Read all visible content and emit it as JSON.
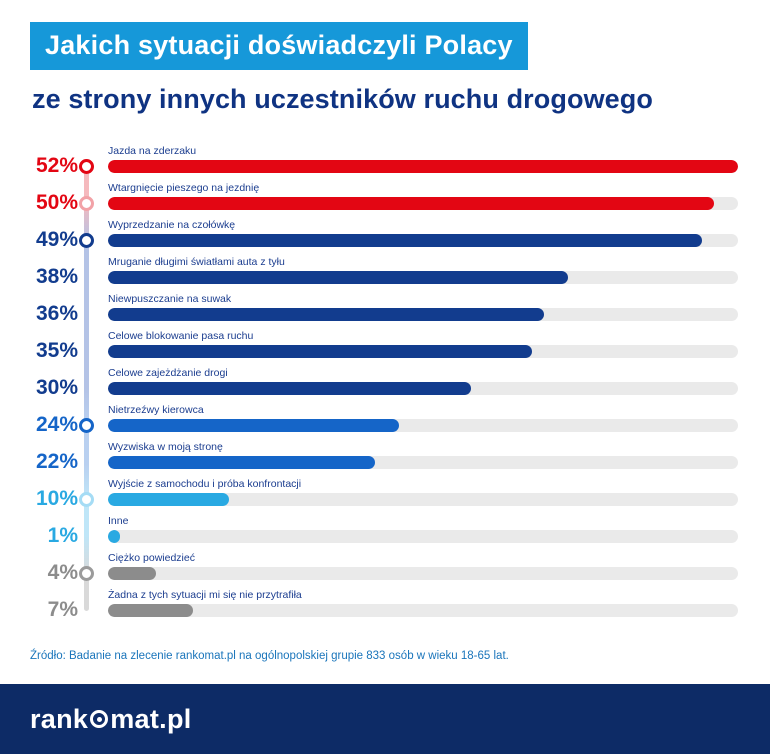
{
  "header": {
    "title_line1": "Jakich sytuacji doświadczyli Polacy",
    "title_line2": "ze strony innych uczestników ruchu drogowego"
  },
  "chart_data": {
    "type": "bar",
    "orientation": "horizontal",
    "title": "Jakich sytuacji doświadczyli Polacy ze strony innych uczestników ruchu drogowego",
    "unit": "%",
    "value_axis_max": 52,
    "track_color": "#eaeaea",
    "grid": false,
    "legend": false,
    "rows": [
      {
        "label": "Jazda na zderzaku",
        "value": 52,
        "percent_label": "52%",
        "color": "#e30613",
        "marker": true,
        "marker_color": "#e30613"
      },
      {
        "label": "Wtargnięcie pieszego na jezdnię",
        "value": 50,
        "percent_label": "50%",
        "color": "#e30613",
        "marker": true,
        "marker_color": "#f2a2a7"
      },
      {
        "label": "Wyprzedzanie na czołówkę",
        "value": 49,
        "percent_label": "49%",
        "color": "#123c8e",
        "marker": true,
        "marker_color": "#123c8e"
      },
      {
        "label": "Mruganie długimi światłami auta z tyłu",
        "value": 38,
        "percent_label": "38%",
        "color": "#123c8e",
        "marker": false,
        "marker_color": ""
      },
      {
        "label": "Niewpuszczanie na suwak",
        "value": 36,
        "percent_label": "36%",
        "color": "#123c8e",
        "marker": false,
        "marker_color": ""
      },
      {
        "label": "Celowe blokowanie pasa ruchu",
        "value": 35,
        "percent_label": "35%",
        "color": "#123c8e",
        "marker": false,
        "marker_color": ""
      },
      {
        "label": "Celowe zajeżdżanie drogi",
        "value": 30,
        "percent_label": "30%",
        "color": "#123c8e",
        "marker": false,
        "marker_color": ""
      },
      {
        "label": "Nietrzeźwy kierowca",
        "value": 24,
        "percent_label": "24%",
        "color": "#1565c8",
        "marker": true,
        "marker_color": "#1565c8"
      },
      {
        "label": "Wyzwiska w moją stronę",
        "value": 22,
        "percent_label": "22%",
        "color": "#1565c8",
        "marker": false,
        "marker_color": ""
      },
      {
        "label": "Wyjście z samochodu i próba konfrontacji",
        "value": 10,
        "percent_label": "10%",
        "color": "#29a9e2",
        "marker": true,
        "marker_color": "#a5dcf5"
      },
      {
        "label": "Inne",
        "value": 1,
        "percent_label": "1%",
        "color": "#29a9e2",
        "marker": false,
        "marker_color": ""
      },
      {
        "label": "Ciężko powiedzieć",
        "value": 4,
        "percent_label": "4%",
        "color": "#8c8c8c",
        "marker": true,
        "marker_color": "#9b9b9b"
      },
      {
        "label": "Żadna z tych sytuacji mi się nie przytrafiła",
        "value": 7,
        "percent_label": "7%",
        "color": "#8c8c8c",
        "marker": false,
        "marker_color": ""
      }
    ]
  },
  "source": "Źródło: Badanie na zlecenie rankomat.pl na ogólnopolskiej grupie 833 osób w wieku 18-65 lat.",
  "footer": {
    "logo_text_before": "rank",
    "logo_text_after": "mat.pl",
    "logo_icon": "circle-icon"
  },
  "colors": {
    "header_band": "#1698d9",
    "title_navy": "#0f3382",
    "footer_navy": "#0d2b66",
    "source_blue": "#1a75bb"
  }
}
